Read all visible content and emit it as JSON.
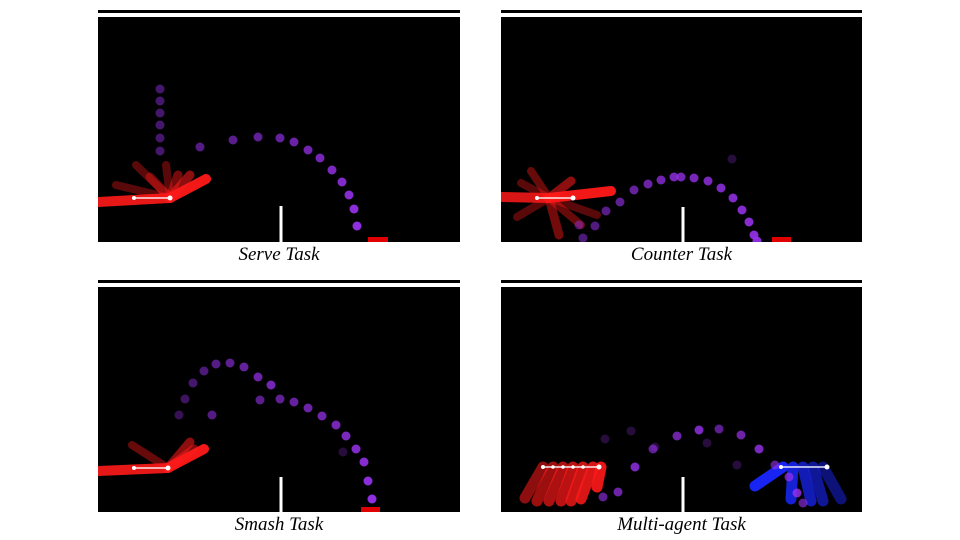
{
  "panels": [
    {
      "id": "serve",
      "caption": "Serve Task",
      "colors": {
        "arm": "#ff1a1a",
        "ball": "#9a32f0",
        "target": "#e00000",
        "net": "#ffffff"
      }
    },
    {
      "id": "counter",
      "caption": "Counter Task",
      "colors": {
        "arm": "#ff1a1a",
        "ball": "#9a32f0",
        "target": "#e00000",
        "net": "#ffffff"
      }
    },
    {
      "id": "smash",
      "caption": "Smash Task",
      "colors": {
        "arm": "#ff1a1a",
        "ball": "#9a32f0",
        "target": "#e00000",
        "net": "#ffffff"
      }
    },
    {
      "id": "multi",
      "caption": "Multi-agent Task",
      "colors": {
        "arm": "#ff1a1a",
        "arm2": "#1a28ff",
        "ball": "#9a32f0",
        "net": "#ffffff"
      }
    }
  ]
}
